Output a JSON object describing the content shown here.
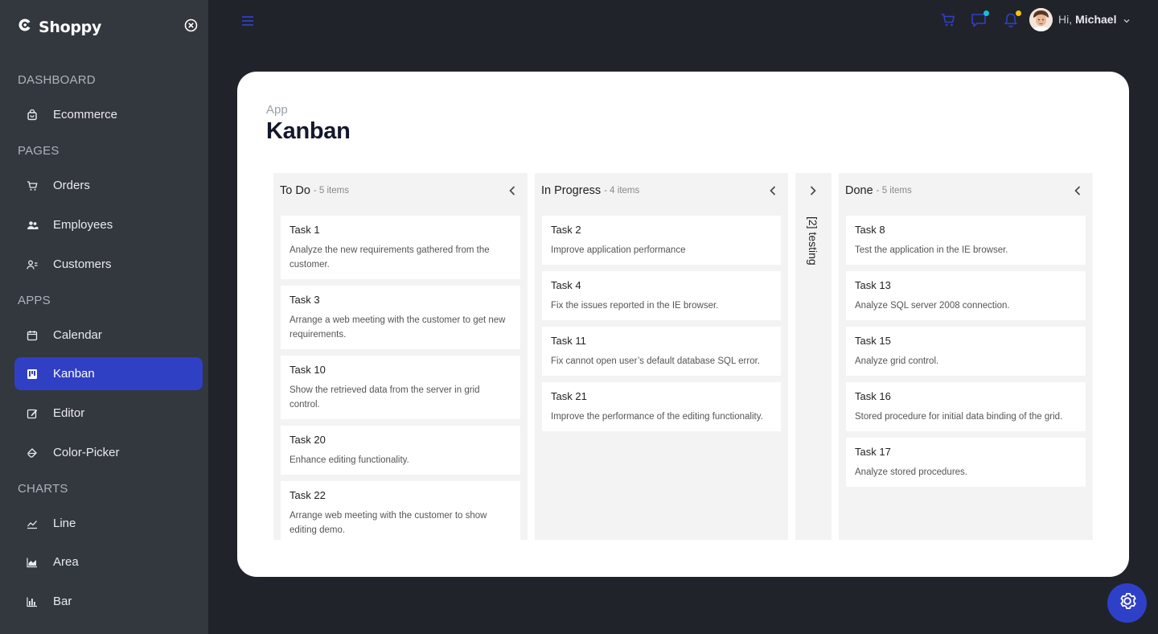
{
  "brand": {
    "name": "Shoppy"
  },
  "sidebar": {
    "sections": [
      {
        "title": "DASHBOARD",
        "items": [
          {
            "label": "Ecommerce",
            "icon": "shopping-bag-icon"
          }
        ]
      },
      {
        "title": "PAGES",
        "items": [
          {
            "label": "Orders",
            "icon": "cart-icon"
          },
          {
            "label": "Employees",
            "icon": "people-icon"
          },
          {
            "label": "Customers",
            "icon": "contact-icon"
          }
        ]
      },
      {
        "title": "APPS",
        "items": [
          {
            "label": "Calendar",
            "icon": "calendar-icon"
          },
          {
            "label": "Kanban",
            "icon": "kanban-icon",
            "active": true
          },
          {
            "label": "Editor",
            "icon": "edit-icon"
          },
          {
            "label": "Color-Picker",
            "icon": "color-picker-icon"
          }
        ]
      },
      {
        "title": "CHARTS",
        "items": [
          {
            "label": "Line",
            "icon": "line-chart-icon"
          },
          {
            "label": "Area",
            "icon": "area-chart-icon"
          },
          {
            "label": "Bar",
            "icon": "bar-chart-icon"
          }
        ]
      }
    ]
  },
  "header": {
    "greeting": "Hi,",
    "user": "Michael",
    "accent": "#3040c4",
    "cart_dot": "#10c3d8",
    "notif_dot": "#ffc107"
  },
  "page": {
    "breadcrumb": "App",
    "title": "Kanban"
  },
  "kanban": {
    "columns": [
      {
        "title": "To Do",
        "count": "- 5 items",
        "cards": [
          {
            "title": "Task 1",
            "desc": "Analyze the new requirements gathered from the customer."
          },
          {
            "title": "Task 3",
            "desc": "Arrange a web meeting with the customer to get new requirements."
          },
          {
            "title": "Task 10",
            "desc": "Show the retrieved data from the server in grid control."
          },
          {
            "title": "Task 20",
            "desc": "Enhance editing functionality."
          },
          {
            "title": "Task 22",
            "desc": "Arrange web meeting with the customer to show editing demo."
          }
        ]
      },
      {
        "title": "In Progress",
        "count": "- 4 items",
        "cards": [
          {
            "title": "Task 2",
            "desc": "Improve application performance"
          },
          {
            "title": "Task 4",
            "desc": "Fix the issues reported in the IE browser."
          },
          {
            "title": "Task 11",
            "desc": "Fix cannot open user’s default database SQL error."
          },
          {
            "title": "Task 21",
            "desc": "Improve the performance of the editing functionality."
          }
        ]
      },
      {
        "title": "Done",
        "count": "- 5 items",
        "cards": [
          {
            "title": "Task 8",
            "desc": "Test the application in the IE browser."
          },
          {
            "title": "Task 13",
            "desc": "Analyze SQL server 2008 connection."
          },
          {
            "title": "Task 15",
            "desc": "Analyze grid control."
          },
          {
            "title": "Task 16",
            "desc": "Stored procedure for initial data binding of the grid."
          },
          {
            "title": "Task 17",
            "desc": "Analyze stored procedures."
          }
        ]
      }
    ],
    "collapsed_column": {
      "label": "[2] testing"
    }
  }
}
